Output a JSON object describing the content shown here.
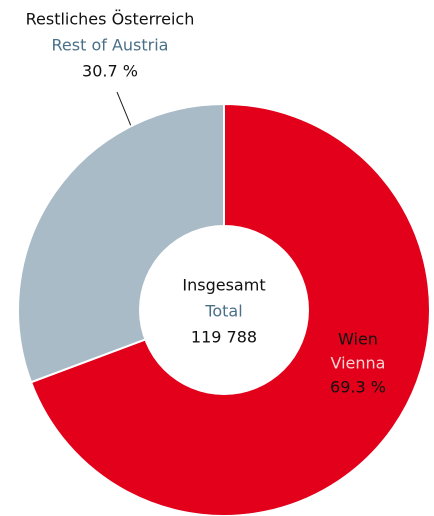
{
  "chart_data": {
    "type": "donut",
    "categories": [
      "Wien",
      "Restliches Österreich"
    ],
    "categories_en": [
      "Vienna",
      "Rest of Austria"
    ],
    "values": [
      69.3,
      30.7
    ],
    "value_labels": [
      "69.3 %",
      "30.7 %"
    ],
    "colors": [
      "#e2001a",
      "#a9bbc7"
    ],
    "center_title": "Insgesamt",
    "center_subtitle": "Total",
    "total": "119 788"
  }
}
